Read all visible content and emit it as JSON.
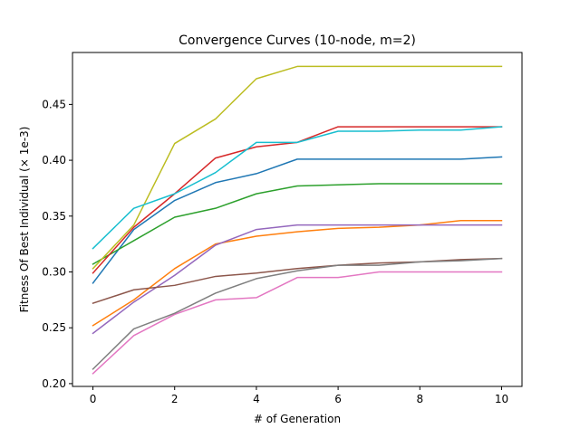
{
  "chart_data": {
    "type": "line",
    "title": "Convergence Curves (10-node, m=2)",
    "xlabel": "# of Generation",
    "ylabel": "Fitness Of Best Individual (× 1e-3)",
    "xlim": [
      -0.5,
      10.5
    ],
    "ylim": [
      0.1975,
      0.4965
    ],
    "xticks": [
      0,
      2,
      4,
      6,
      8,
      10
    ],
    "xtick_labels": [
      "0",
      "2",
      "4",
      "6",
      "8",
      "10"
    ],
    "yticks": [
      0.2,
      0.25,
      0.3,
      0.35,
      0.4,
      0.45
    ],
    "ytick_labels": [
      "0.20",
      "0.25",
      "0.30",
      "0.35",
      "0.40",
      "0.45"
    ],
    "grid": false,
    "x": [
      0,
      1,
      2,
      3,
      4,
      5,
      6,
      7,
      8,
      9,
      10
    ],
    "series": [
      {
        "color": "#1f77b4",
        "values": [
          0.29,
          0.338,
          0.364,
          0.38,
          0.388,
          0.401,
          0.401,
          0.401,
          0.401,
          0.401,
          0.403
        ]
      },
      {
        "color": "#ff7f0e",
        "values": [
          0.252,
          0.275,
          0.303,
          0.325,
          0.332,
          0.336,
          0.339,
          0.34,
          0.342,
          0.346,
          0.346
        ]
      },
      {
        "color": "#2ca02c",
        "values": [
          0.307,
          0.328,
          0.349,
          0.357,
          0.37,
          0.377,
          0.378,
          0.379,
          0.379,
          0.379,
          0.379
        ]
      },
      {
        "color": "#d62728",
        "values": [
          0.299,
          0.34,
          0.37,
          0.402,
          0.412,
          0.416,
          0.43,
          0.43,
          0.43,
          0.43,
          0.43
        ]
      },
      {
        "color": "#9467bd",
        "values": [
          0.245,
          0.273,
          0.297,
          0.324,
          0.338,
          0.342,
          0.342,
          0.342,
          0.342,
          0.342,
          0.342
        ]
      },
      {
        "color": "#8c564b",
        "values": [
          0.272,
          0.284,
          0.288,
          0.296,
          0.299,
          0.303,
          0.306,
          0.308,
          0.309,
          0.311,
          0.312
        ]
      },
      {
        "color": "#e377c2",
        "values": [
          0.209,
          0.243,
          0.262,
          0.275,
          0.277,
          0.295,
          0.295,
          0.3,
          0.3,
          0.3,
          0.3
        ]
      },
      {
        "color": "#7f7f7f",
        "values": [
          0.213,
          0.249,
          0.263,
          0.281,
          0.294,
          0.301,
          0.306,
          0.306,
          0.309,
          0.31,
          0.312
        ]
      },
      {
        "color": "#bcbd22",
        "values": [
          0.303,
          0.342,
          0.415,
          0.437,
          0.473,
          0.484,
          0.484,
          0.484,
          0.484,
          0.484,
          0.484
        ]
      },
      {
        "color": "#17becf",
        "values": [
          0.321,
          0.357,
          0.37,
          0.389,
          0.416,
          0.416,
          0.426,
          0.426,
          0.427,
          0.427,
          0.43
        ]
      }
    ]
  }
}
